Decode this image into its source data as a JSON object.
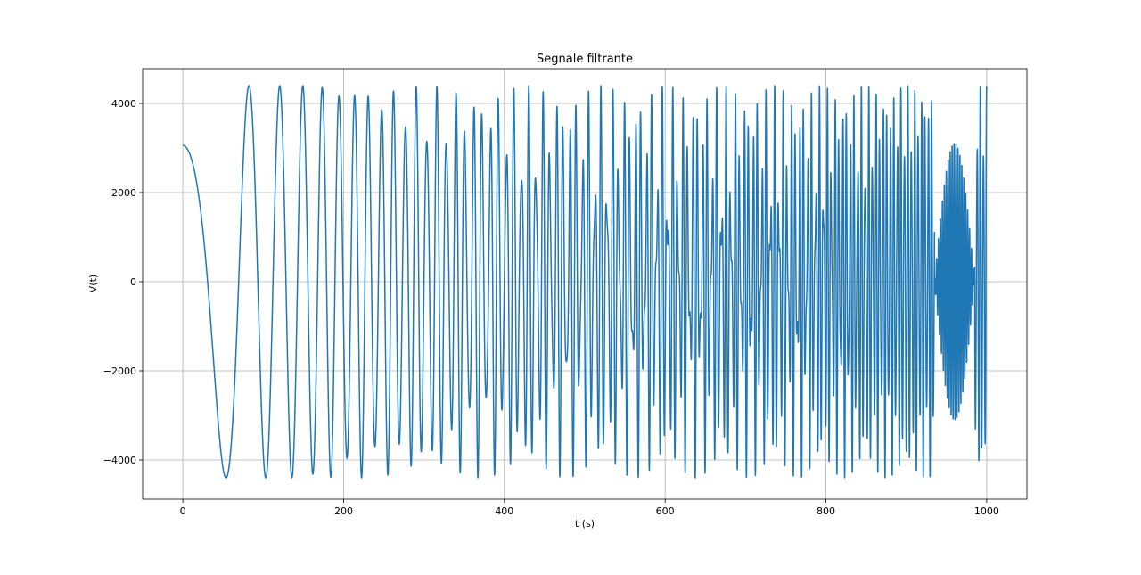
{
  "chart_data": {
    "type": "line",
    "title": "Segnale filtrante",
    "xlabel": "t (s)",
    "ylabel": "V(t)",
    "xlim": [
      -50,
      1050
    ],
    "ylim": [
      -4880,
      4780
    ],
    "grid": true,
    "line_color": "#1f77b4",
    "x_ticks": [
      {
        "value": 0,
        "label": "0"
      },
      {
        "value": 200,
        "label": "200"
      },
      {
        "value": 400,
        "label": "400"
      },
      {
        "value": 600,
        "label": "600"
      },
      {
        "value": 800,
        "label": "800"
      },
      {
        "value": 1000,
        "label": "1000"
      }
    ],
    "y_ticks": [
      {
        "value": -4000,
        "label": "−4000"
      },
      {
        "value": -2000,
        "label": "−2000"
      },
      {
        "value": 0,
        "label": "0"
      },
      {
        "value": 2000,
        "label": "2000"
      },
      {
        "value": 4000,
        "label": "4000"
      }
    ],
    "series": [
      {
        "description": "chirp-like oscillation, frequency increasing with t",
        "x_range": [
          0,
          1000
        ],
        "amplitude": 4400,
        "start_value": 3060,
        "dense_band_amplitude": 1800,
        "end_beat": {
          "t_range": [
            935,
            985
          ],
          "amplitude": 3100
        }
      }
    ]
  }
}
